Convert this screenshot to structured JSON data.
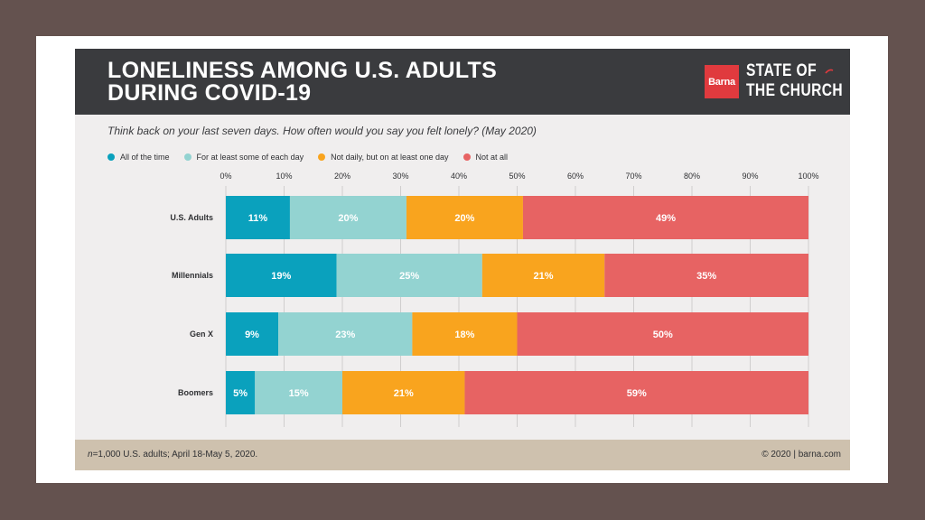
{
  "header": {
    "title_line1": "LONELINESS AMONG U.S. ADULTS",
    "title_line2": "DURING COVID-19",
    "logo_text": "Barna",
    "brand_line1": "STATE OF",
    "brand_line2": "THE CHURCH"
  },
  "question": "Think back on your last seven days. How often would you say you felt lonely? (May 2020)",
  "footer": {
    "n_italic": "n",
    "note": "=1,000 U.S. adults; April 18-May 5, 2020.",
    "copyright": "© 2020 | barna.com"
  },
  "colors": {
    "header_bg": "#3a3b3e",
    "card_bg": "#f0eeee",
    "footer_bg": "#cec1ae",
    "logo_red": "#e03a3e"
  },
  "chart_data": {
    "type": "bar",
    "orientation": "horizontal",
    "stacked": true,
    "categories": [
      "U.S. Adults",
      "Millennials",
      "Gen X",
      "Boomers"
    ],
    "series": [
      {
        "name": "All of the time",
        "color": "#0aa1bd",
        "values": [
          11,
          19,
          9,
          5
        ]
      },
      {
        "name": "For at least some of each day",
        "color": "#93d3d1",
        "values": [
          20,
          25,
          23,
          15
        ]
      },
      {
        "name": "Not daily, but on at least one day",
        "color": "#f9a41e",
        "values": [
          20,
          21,
          18,
          21
        ]
      },
      {
        "name": "Not at all",
        "color": "#e76363",
        "values": [
          49,
          35,
          50,
          59
        ]
      }
    ],
    "xlim": [
      0,
      100
    ],
    "xticks": [
      "0%",
      "10%",
      "20%",
      "30%",
      "40%",
      "50%",
      "60%",
      "70%",
      "80%",
      "90%",
      "100%"
    ],
    "grid": true,
    "legend_position": "top-left",
    "data_label_suffix": "%"
  }
}
